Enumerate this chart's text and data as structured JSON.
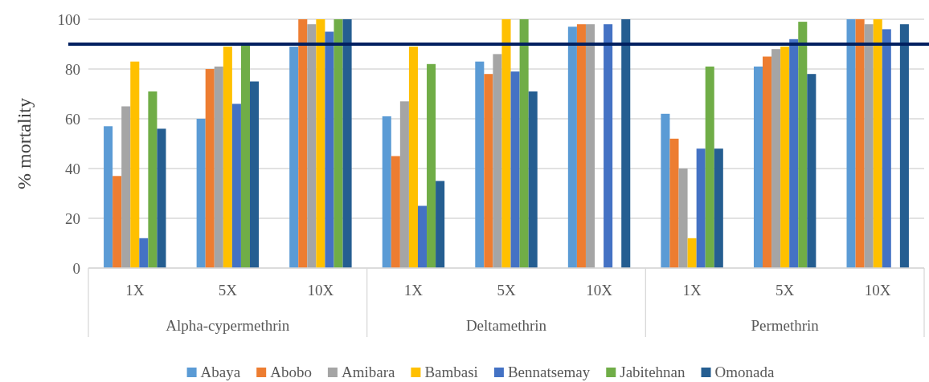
{
  "chart_data": {
    "type": "bar",
    "ylabel": "% mortality",
    "categories": [
      "1X",
      "5X",
      "10X",
      "1X",
      "5X",
      "10X",
      "1X",
      "5X",
      "10X"
    ],
    "annotations": [
      "Alpha-cypermethrin",
      "Deltamethrin",
      "Permethrin"
    ],
    "series": [
      {
        "name": "Abaya",
        "color": "#5b9bd5",
        "values": [
          57,
          60,
          89,
          61,
          83,
          97,
          62,
          81,
          100
        ]
      },
      {
        "name": "Abobo",
        "color": "#ed7d31",
        "values": [
          37,
          80,
          100,
          45,
          78,
          98,
          52,
          85,
          100
        ]
      },
      {
        "name": "Amibara",
        "color": "#a5a5a5",
        "values": [
          65,
          81,
          98,
          67,
          86,
          98,
          40,
          88,
          98
        ]
      },
      {
        "name": "Bambasi",
        "color": "#ffc000",
        "values": [
          83,
          89,
          100,
          89,
          100,
          null,
          12,
          89,
          100
        ]
      },
      {
        "name": "Bennatsemay",
        "color": "#4472c4",
        "values": [
          12,
          66,
          95,
          25,
          79,
          98,
          48,
          92,
          96
        ]
      },
      {
        "name": "Jabitehnan",
        "color": "#70ad47",
        "values": [
          71,
          90,
          100,
          82,
          100,
          null,
          81,
          99,
          null
        ]
      },
      {
        "name": "Omonada",
        "color": "#255e91",
        "values": [
          56,
          75,
          100,
          35,
          71,
          100,
          48,
          78,
          98
        ]
      }
    ],
    "ylim": [
      0,
      100
    ],
    "yticks": [
      0,
      20,
      40,
      60,
      80,
      100
    ],
    "grid": "y",
    "legend": "bottom",
    "ref_lines": [
      {
        "axis": "y",
        "value": 90,
        "color": "#002060"
      }
    ]
  }
}
